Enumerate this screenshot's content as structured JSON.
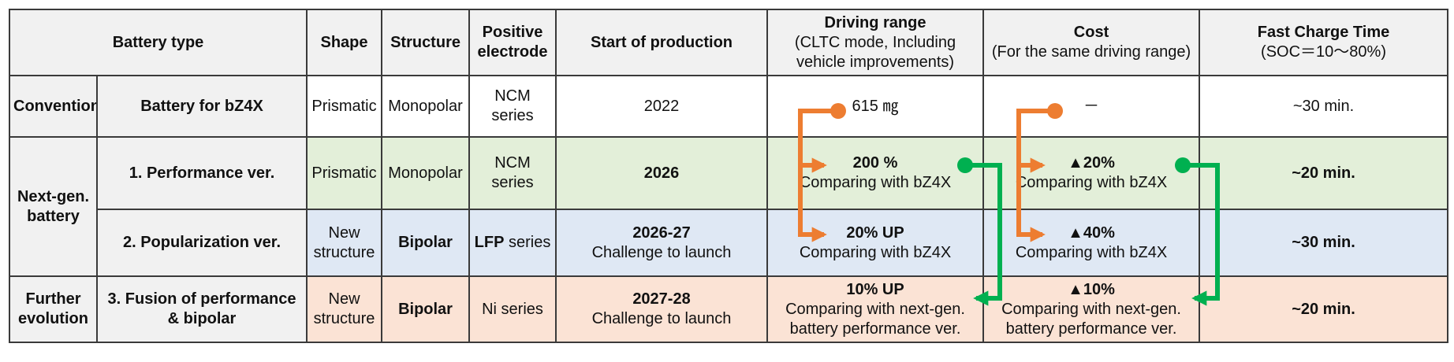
{
  "headers": {
    "battery_type": "Battery type",
    "shape": "Shape",
    "structure": "Structure",
    "positive_electrode": "Positive electrode",
    "start_of_production": "Start of production",
    "driving_range": "Driving range",
    "driving_range_sub": "(CLTC mode, Including vehicle improvements)",
    "cost": "Cost",
    "cost_sub": "(For the same driving range)",
    "fast_charge": "Fast Charge Time",
    "fast_charge_sub": "(SOC＝10～80%)"
  },
  "groups": {
    "conventional": "Conventional",
    "next_gen": "Next-gen. battery",
    "further": "Further evolution"
  },
  "rows": [
    {
      "name": "Battery for bZ4X",
      "shape": "Prismatic",
      "structure": "Monopolar",
      "electrode_bold": "",
      "electrode": "NCM series",
      "sop": "2022",
      "sop_note": "",
      "range": "615 ㎎",
      "range_note": "",
      "range_note2": "",
      "cost": "－",
      "cost_note": "",
      "cost_note2": "",
      "charge": "~30 min."
    },
    {
      "name": "1. Performance ver.",
      "shape": "Prismatic",
      "structure": "Monopolar",
      "electrode_bold": "",
      "electrode": "NCM series",
      "sop": "2026",
      "sop_note": "",
      "range": "200 %",
      "range_note": "Comparing with bZ4X",
      "range_note2": "",
      "cost": "▲20%",
      "cost_note": "Comparing with bZ4X",
      "cost_note2": "",
      "charge": "~20 min."
    },
    {
      "name": "2. Popularization ver.",
      "shape": "New structure",
      "structure": "Bipolar",
      "electrode_bold": "LFP",
      "electrode": " series",
      "sop": "2026-27",
      "sop_note": "Challenge to launch",
      "range": "20%  UP",
      "range_note": "Comparing with bZ4X",
      "range_note2": "",
      "cost": "▲40%",
      "cost_note": "Comparing with bZ4X",
      "cost_note2": "",
      "charge": "~30 min."
    },
    {
      "name": "3. Fusion of performance & bipolar",
      "shape": "New structure",
      "structure": "Bipolar",
      "electrode_bold": "",
      "electrode": "Ni series",
      "sop": "2027-28",
      "sop_note": "Challenge to launch",
      "range": "10%  UP",
      "range_note": "Comparing with next-gen.",
      "range_note2": "battery performance ver.",
      "cost": "▲10%",
      "cost_note": "Comparing with next-gen.",
      "cost_note2": "battery performance ver.",
      "charge": "~20 min."
    }
  ],
  "colors": {
    "orange_arrow": "#ed7d31",
    "green_arrow": "#00b050",
    "row_conventional": "#ffffff",
    "row_performance": "#e3efd9",
    "row_popularization": "#dfe8f4",
    "row_fusion": "#fbe3d5"
  }
}
